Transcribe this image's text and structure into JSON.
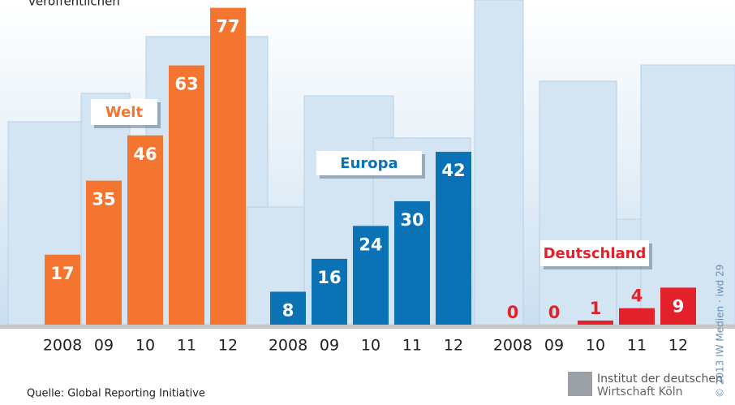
{
  "subtitle": "veröffentlichen",
  "chart_data": [
    {
      "type": "bar",
      "title": "Welt",
      "categories": [
        "2008",
        "09",
        "10",
        "11",
        "12"
      ],
      "values": [
        17,
        35,
        46,
        63,
        77
      ],
      "color": "#f47530"
    },
    {
      "type": "bar",
      "title": "Europa",
      "categories": [
        "2008",
        "09",
        "10",
        "11",
        "12"
      ],
      "values": [
        8,
        16,
        24,
        30,
        42
      ],
      "color": "#0a72b5"
    },
    {
      "type": "bar",
      "title": "Deutschland",
      "categories": [
        "2008",
        "09",
        "10",
        "11",
        "12"
      ],
      "values": [
        0,
        0,
        1,
        4,
        9
      ],
      "color": "#e3212b"
    }
  ],
  "source": "Quelle: Global Reporting Initiative",
  "logo": {
    "line1": "Institut der deutschen",
    "line2": "Wirtschaft Köln"
  },
  "copyright": "© 2013 IW Medien · iwd 29"
}
